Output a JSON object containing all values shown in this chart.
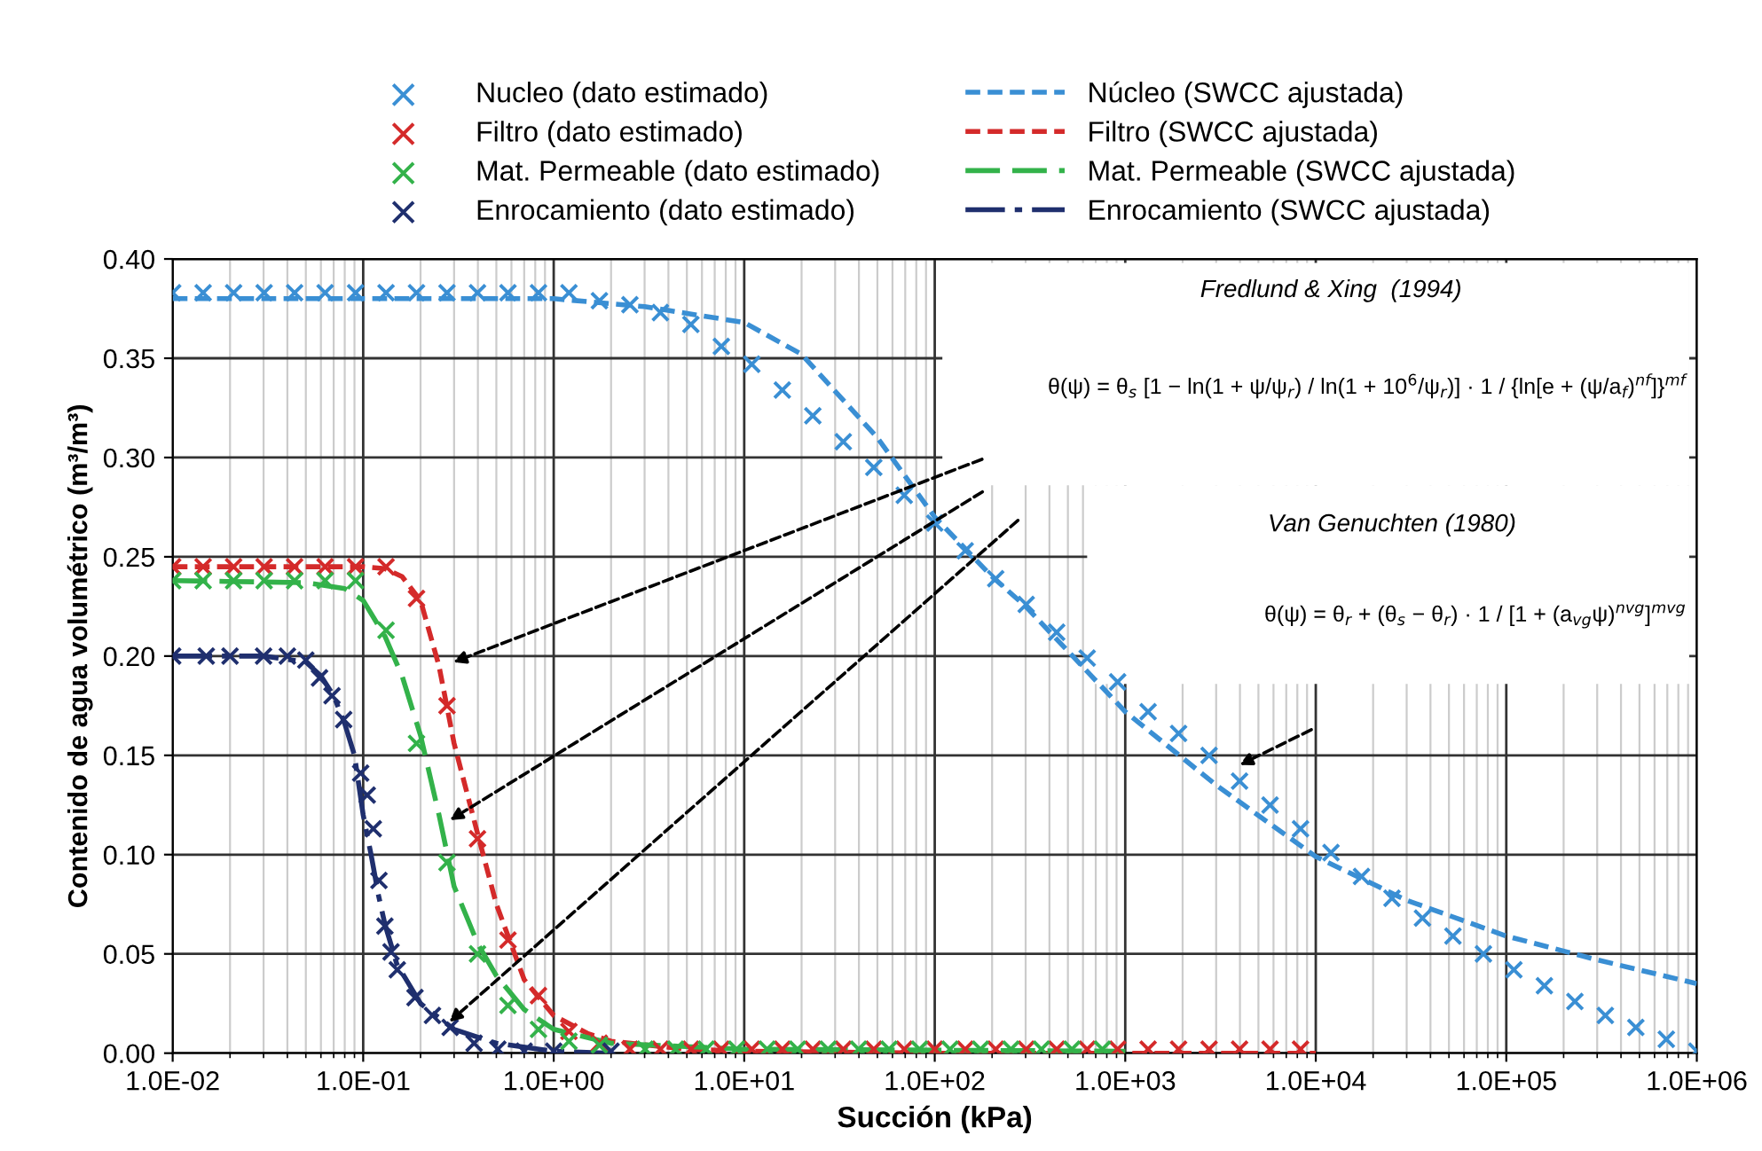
{
  "chart_data": {
    "type": "line",
    "xlabel": "Succión (kPa)",
    "ylabel": "Contenido de agua volumétrico (m³/m³)",
    "log": "x",
    "grid": true,
    "legend": "top",
    "xlim": [
      0.01,
      1000000
    ],
    "xticks": [
      {
        "value": 0.01,
        "label": "1.0E-02"
      },
      {
        "value": 0.1,
        "label": "1.0E-01"
      },
      {
        "value": 1,
        "label": "1.0E+00"
      },
      {
        "value": 10,
        "label": "1.0E+01"
      },
      {
        "value": 100,
        "label": "1.0E+02"
      },
      {
        "value": 1000,
        "label": "1.0E+03"
      },
      {
        "value": 10000,
        "label": "1.0E+04"
      },
      {
        "value": 100000,
        "label": "1.0E+05"
      },
      {
        "value": 1000000,
        "label": "1.0E+06"
      }
    ],
    "ylim": [
      0,
      0.4
    ],
    "yticks": [
      {
        "value": 0,
        "label": "0.00"
      },
      {
        "value": 0.05,
        "label": "0.05"
      },
      {
        "value": 0.1,
        "label": "0.10"
      },
      {
        "value": 0.15,
        "label": "0.15"
      },
      {
        "value": 0.2,
        "label": "0.20"
      },
      {
        "value": 0.25,
        "label": "0.25"
      },
      {
        "value": 0.3,
        "label": "0.30"
      },
      {
        "value": 0.35,
        "label": "0.35"
      },
      {
        "value": 0.4,
        "label": "0.40"
      }
    ],
    "annotations": [
      "Fredlund & Xing  (1994)",
      "θ(ψ) = θ$_{s}$ [1 − ln(1 + ψ/ψ$_{r}$) / ln(1 + 10$^{6}$/ψ$_{r}$)] · 1 / {ln[e + (ψ/a$_{f}$)$^{nf}$]}$^{mf}$",
      "Van Genuchten (1980)",
      "θ(ψ) = θ$_{r}$ + (θ$_{s}$ − θ$_{r}$) · 1 / [1 + (a$_{vg}$ψ)$^{nvg}$]$^{mvg}$"
    ],
    "series": [
      {
        "name": "Nucleo (dato estimado)",
        "type": "scatter",
        "marker": "cross",
        "color": "#3a8fd4",
        "x": [
          0.01,
          0.01445,
          0.02089,
          0.0302,
          0.04365,
          0.0631,
          0.0912,
          0.1318,
          0.1905,
          0.2754,
          0.3981,
          0.5754,
          0.8318,
          1.202,
          1.738,
          2.512,
          3.631,
          5.248,
          7.586,
          10.96,
          15.85,
          22.91,
          33.11,
          47.86,
          69.18,
          100,
          144.5,
          208.9,
          302,
          436.5,
          631,
          912,
          1318,
          1905,
          2754,
          3981,
          5754,
          8318,
          12020,
          17380,
          25120,
          36310,
          52480,
          75860,
          109600,
          158500,
          229100,
          331100,
          478600,
          691800,
          1000000
        ],
        "values": [
          0.383,
          0.383,
          0.383,
          0.383,
          0.383,
          0.383,
          0.383,
          0.383,
          0.383,
          0.383,
          0.383,
          0.383,
          0.383,
          0.383,
          0.379,
          0.377,
          0.373,
          0.367,
          0.356,
          0.347,
          0.334,
          0.321,
          0.308,
          0.295,
          0.281,
          0.267,
          0.253,
          0.239,
          0.226,
          0.212,
          0.199,
          0.187,
          0.172,
          0.161,
          0.15,
          0.137,
          0.125,
          0.113,
          0.101,
          0.089,
          0.078,
          0.068,
          0.059,
          0.05,
          0.042,
          0.034,
          0.026,
          0.019,
          0.013,
          0.007,
          0.001
        ]
      },
      {
        "name": "Filtro (dato estimado)",
        "type": "scatter",
        "marker": "cross",
        "color": "#d42a2a",
        "x": [
          0.01,
          0.01445,
          0.02089,
          0.0302,
          0.04365,
          0.0631,
          0.0912,
          0.1318,
          0.1905,
          0.2754,
          0.3981,
          0.5754,
          0.8318,
          1.202,
          1.738,
          2.512,
          3.631,
          5.248,
          7.586,
          10.96,
          15.85,
          22.91,
          33.11,
          47.86,
          69.18,
          100,
          144.5,
          208.9,
          302,
          436.5,
          631,
          912,
          1318,
          1905,
          2754,
          3981,
          5754,
          8318
        ],
        "values": [
          0.245,
          0.245,
          0.245,
          0.245,
          0.245,
          0.245,
          0.245,
          0.245,
          0.229,
          0.175,
          0.108,
          0.057,
          0.029,
          0.011,
          0.005,
          0.002,
          0.002,
          0.002,
          0.002,
          0.002,
          0.002,
          0.002,
          0.002,
          0.002,
          0.002,
          0.002,
          0.002,
          0.002,
          0.002,
          0.002,
          0.002,
          0.002,
          0.002,
          0.002,
          0.002,
          0.002,
          0.002,
          0.002
        ]
      },
      {
        "name": "Mat. Permeable (dato estimado)",
        "type": "scatter",
        "marker": "cross",
        "color": "#33b24a",
        "x": [
          0.01,
          0.01445,
          0.02089,
          0.0302,
          0.04365,
          0.0631,
          0.0912,
          0.1318,
          0.1905,
          0.2754,
          0.3981,
          0.5754,
          0.8318,
          1.202,
          1.738,
          3.02,
          4.365,
          6.31,
          9.12,
          13.18,
          19.05,
          27.54,
          39.81,
          57.54,
          83.18,
          120.2,
          173.8,
          251.2,
          363.1,
          524.8,
          758.6
        ],
        "values": [
          0.238,
          0.238,
          0.238,
          0.238,
          0.238,
          0.238,
          0.238,
          0.213,
          0.156,
          0.096,
          0.05,
          0.024,
          0.012,
          0.006,
          0.004,
          0.002,
          0.002,
          0.002,
          0.002,
          0.002,
          0.002,
          0.002,
          0.002,
          0.002,
          0.002,
          0.002,
          0.002,
          0.002,
          0.002,
          0.002,
          0.002
        ]
      },
      {
        "name": "Enrocamiento (dato estimado)",
        "type": "scatter",
        "marker": "cross",
        "color": "#1f2f6e",
        "x": [
          0.01,
          0.015,
          0.02,
          0.03,
          0.04,
          0.05,
          0.059,
          0.0686,
          0.079,
          0.097,
          0.105,
          0.113,
          0.121,
          0.13,
          0.14,
          0.151,
          0.187,
          0.231,
          0.286,
          0.382,
          0.509,
          0.7,
          1,
          2
        ],
        "values": [
          0.2,
          0.2,
          0.2,
          0.2,
          0.2,
          0.198,
          0.189,
          0.18,
          0.168,
          0.141,
          0.13,
          0.113,
          0.087,
          0.064,
          0.051,
          0.042,
          0.028,
          0.019,
          0.013,
          0.005,
          0.002,
          0.001,
          0.001,
          0.001
        ]
      },
      {
        "name": "Núcleo (SWCC ajustada)",
        "line_style": "dashed",
        "color": "#3a8fd4",
        "x": [
          0.01,
          0.1,
          1,
          3,
          10,
          20,
          50,
          100,
          200,
          300,
          1000,
          3000,
          10000,
          30000,
          100000,
          300000,
          1000000
        ],
        "values": [
          0.38,
          0.38,
          0.38,
          0.376,
          0.368,
          0.352,
          0.31,
          0.27,
          0.24,
          0.225,
          0.172,
          0.135,
          0.099,
          0.077,
          0.059,
          0.047,
          0.035
        ]
      },
      {
        "name": "Filtro (SWCC ajustada)",
        "line_style": "dashed",
        "color": "#d42a2a",
        "x": [
          0.01,
          0.1,
          0.13,
          0.16,
          0.2,
          0.25,
          0.3,
          0.4,
          0.5,
          0.7,
          1,
          1.5,
          2,
          5,
          10,
          100,
          1000,
          10000
        ],
        "values": [
          0.245,
          0.245,
          0.244,
          0.24,
          0.228,
          0.195,
          0.156,
          0.11,
          0.075,
          0.037,
          0.019,
          0.01,
          0.006,
          0.002,
          0.001,
          0.0,
          0.0,
          0.0
        ]
      },
      {
        "name": "Mat. Permeable (SWCC ajustada)",
        "line_style": "longdash",
        "color": "#33b24a",
        "x": [
          0.01,
          0.05,
          0.08,
          0.1,
          0.13,
          0.16,
          0.2,
          0.25,
          0.3,
          0.4,
          0.5,
          0.7,
          1,
          2,
          10,
          1000
        ],
        "values": [
          0.238,
          0.237,
          0.234,
          0.228,
          0.21,
          0.19,
          0.16,
          0.12,
          0.084,
          0.055,
          0.039,
          0.022,
          0.012,
          0.005,
          0.002,
          0.001
        ]
      },
      {
        "name": "Enrocamiento (SWCC ajustada)",
        "line_style": "dashdot",
        "color": "#1f2f6e",
        "x": [
          0.01,
          0.03,
          0.05,
          0.06,
          0.07,
          0.08,
          0.09,
          0.1,
          0.11,
          0.12,
          0.13,
          0.15,
          0.2,
          0.3,
          0.5,
          1,
          2
        ],
        "values": [
          0.2,
          0.2,
          0.197,
          0.19,
          0.18,
          0.166,
          0.15,
          0.12,
          0.1,
          0.08,
          0.065,
          0.045,
          0.025,
          0.012,
          0.005,
          0.001,
          0.0
        ]
      }
    ]
  }
}
